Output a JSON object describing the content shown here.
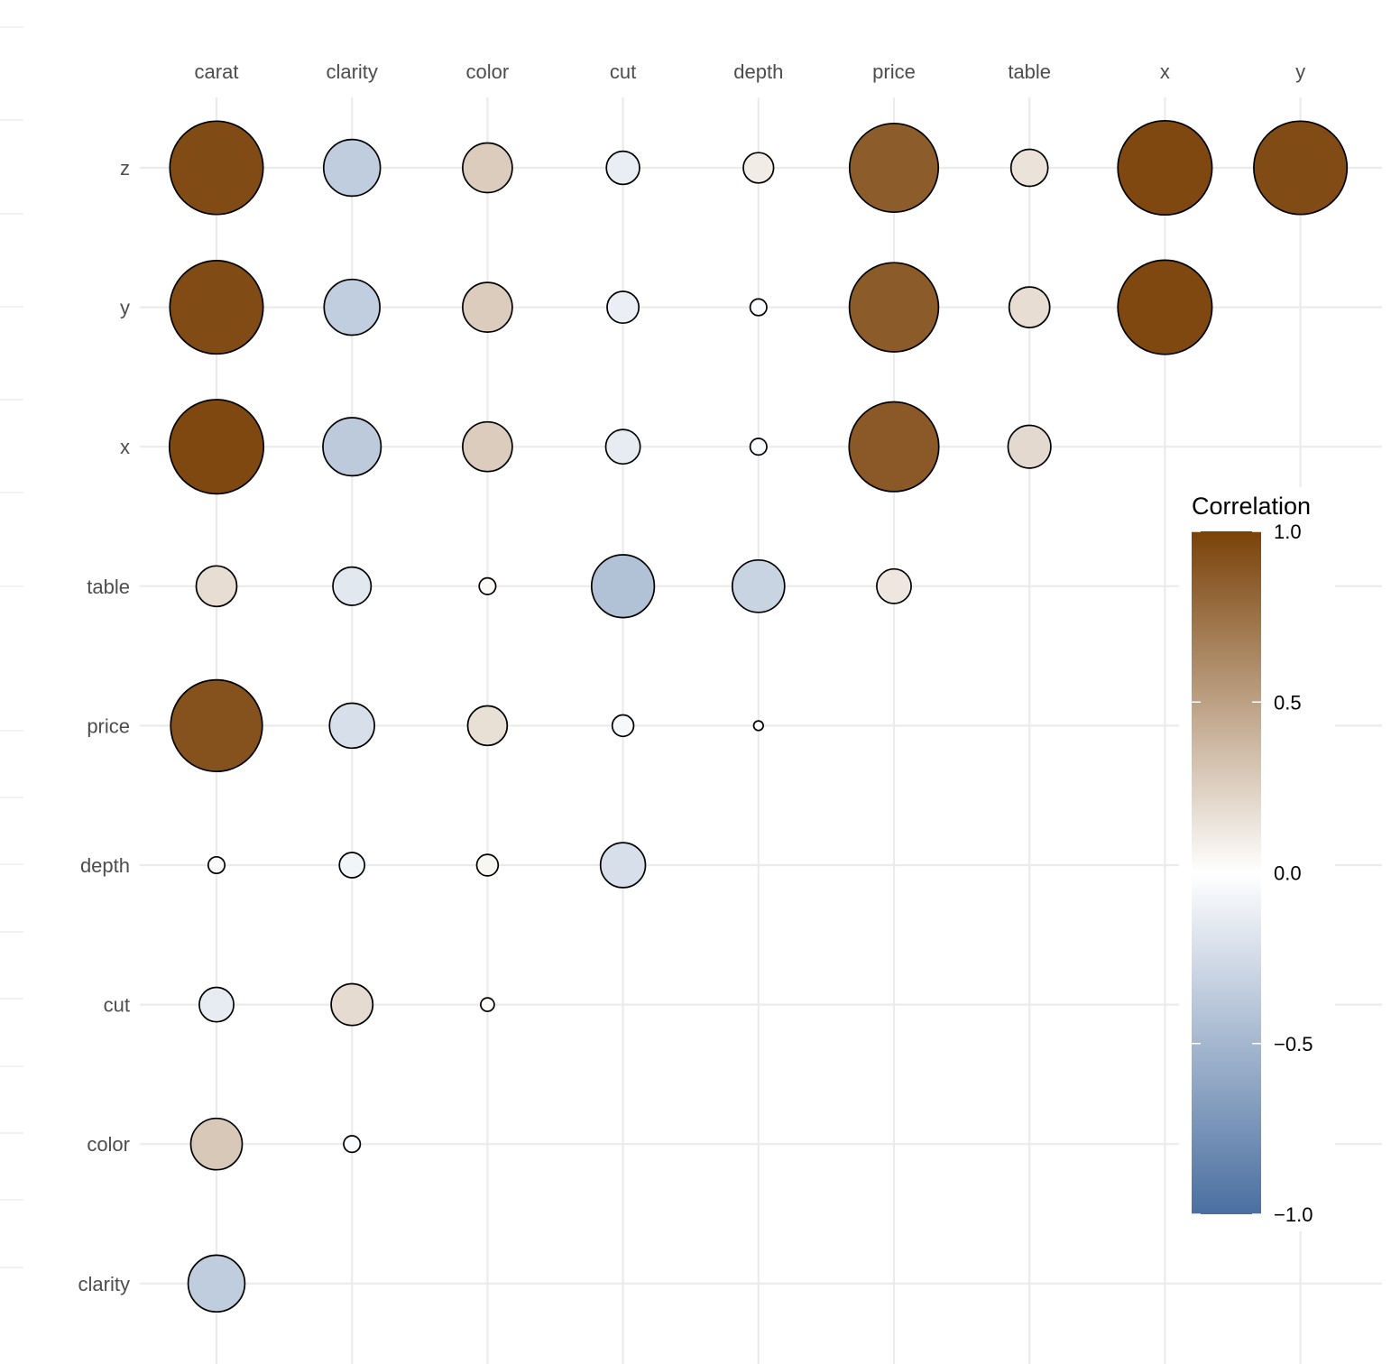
{
  "chart_data": {
    "type": "bubble-correlation-matrix",
    "x_categories": [
      "carat",
      "clarity",
      "color",
      "cut",
      "depth",
      "price",
      "table",
      "x",
      "y"
    ],
    "y_categories": [
      "clarity",
      "color",
      "cut",
      "depth",
      "price",
      "table",
      "x",
      "y",
      "z"
    ],
    "x_axis_position": "top",
    "grid": true,
    "legend": {
      "title": "Correlation",
      "position": "right",
      "range": [
        -1,
        1
      ],
      "ticks": [
        1.0,
        0.5,
        0.0,
        -0.5,
        -1.0
      ],
      "tick_labels": [
        "1.0",
        "0.5",
        "0.0",
        "−0.5",
        "−1.0"
      ],
      "low_color": "#4a6fa0",
      "mid_color": "#ffffff",
      "high_color": "#7a4209"
    },
    "cells": [
      {
        "row": "z",
        "col": "carat",
        "r": 0.95
      },
      {
        "row": "z",
        "col": "clarity",
        "r": -0.35
      },
      {
        "row": "z",
        "col": "color",
        "r": 0.27
      },
      {
        "row": "z",
        "col": "cut",
        "r": -0.12
      },
      {
        "row": "z",
        "col": "depth",
        "r": 0.1
      },
      {
        "row": "z",
        "col": "price",
        "r": 0.86
      },
      {
        "row": "z",
        "col": "table",
        "r": 0.15
      },
      {
        "row": "z",
        "col": "x",
        "r": 0.97
      },
      {
        "row": "z",
        "col": "y",
        "r": 0.95
      },
      {
        "row": "y",
        "col": "carat",
        "r": 0.95
      },
      {
        "row": "y",
        "col": "clarity",
        "r": -0.34
      },
      {
        "row": "y",
        "col": "color",
        "r": 0.27
      },
      {
        "row": "y",
        "col": "cut",
        "r": -0.11
      },
      {
        "row": "y",
        "col": "depth",
        "r": -0.03
      },
      {
        "row": "y",
        "col": "price",
        "r": 0.87
      },
      {
        "row": "y",
        "col": "table",
        "r": 0.18
      },
      {
        "row": "y",
        "col": "x",
        "r": 0.97
      },
      {
        "row": "x",
        "col": "carat",
        "r": 0.97
      },
      {
        "row": "x",
        "col": "clarity",
        "r": -0.37
      },
      {
        "row": "x",
        "col": "color",
        "r": 0.27
      },
      {
        "row": "x",
        "col": "cut",
        "r": -0.13
      },
      {
        "row": "x",
        "col": "depth",
        "r": -0.03
      },
      {
        "row": "x",
        "col": "price",
        "r": 0.88
      },
      {
        "row": "x",
        "col": "table",
        "r": 0.2
      },
      {
        "row": "table",
        "col": "carat",
        "r": 0.18
      },
      {
        "row": "table",
        "col": "clarity",
        "r": -0.16
      },
      {
        "row": "table",
        "col": "color",
        "r": 0.03
      },
      {
        "row": "table",
        "col": "cut",
        "r": -0.43
      },
      {
        "row": "table",
        "col": "depth",
        "r": -0.3
      },
      {
        "row": "table",
        "col": "price",
        "r": 0.13
      },
      {
        "row": "price",
        "col": "carat",
        "r": 0.92
      },
      {
        "row": "price",
        "col": "clarity",
        "r": -0.22
      },
      {
        "row": "price",
        "col": "color",
        "r": 0.17
      },
      {
        "row": "price",
        "col": "cut",
        "r": -0.05
      },
      {
        "row": "price",
        "col": "depth",
        "r": -0.01
      },
      {
        "row": "depth",
        "col": "carat",
        "r": 0.03
      },
      {
        "row": "depth",
        "col": "clarity",
        "r": -0.07
      },
      {
        "row": "depth",
        "col": "color",
        "r": 0.05
      },
      {
        "row": "depth",
        "col": "cut",
        "r": -0.22
      },
      {
        "row": "cut",
        "col": "carat",
        "r": -0.13
      },
      {
        "row": "cut",
        "col": "clarity",
        "r": 0.19
      },
      {
        "row": "cut",
        "col": "color",
        "r": 0.02
      },
      {
        "row": "color",
        "col": "carat",
        "r": 0.29
      },
      {
        "row": "color",
        "col": "clarity",
        "r": -0.03
      },
      {
        "row": "clarity",
        "col": "carat",
        "r": -0.35
      }
    ]
  }
}
